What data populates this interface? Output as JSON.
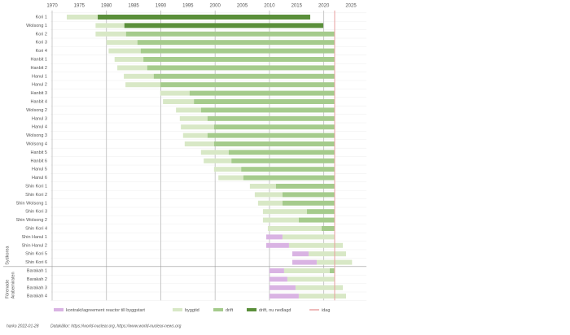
{
  "chart_data": {
    "type": "timeline",
    "xlim": [
      1970,
      2025
    ],
    "xticks": [
      1970,
      1975,
      1980,
      1985,
      1990,
      1995,
      2000,
      2005,
      2010,
      2015,
      2020,
      2025
    ],
    "grid": true,
    "series": [
      {
        "name": "kontrakt/agreement reactor till byggstart",
        "color": "#d9b3e3"
      },
      {
        "name": "byggtid",
        "color": "#d8e8c6"
      },
      {
        "name": "drift",
        "color": "#a5cb8c"
      },
      {
        "name": "drift, nu nedlagd",
        "color": "#5a8f3a"
      }
    ],
    "today": {
      "name": "idag",
      "value": 2022,
      "color": "#e8a2a2"
    },
    "groups": [
      {
        "label": [
          "Sydkorea"
        ],
        "rows": [
          {
            "name": "Kori 1",
            "phases": [
              null,
              [
                1972.7,
                1978.4
              ],
              null,
              [
                1978.4,
                2017.5
              ]
            ]
          },
          {
            "name": "Wolsong 1",
            "phases": [
              null,
              [
                1978,
                1983.3
              ],
              null,
              [
                1983.3,
                2019.9
              ]
            ]
          },
          {
            "name": "Kori 2",
            "phases": [
              null,
              [
                1978,
                1983.6
              ],
              [
                1983.6,
                2022
              ],
              null
            ]
          },
          {
            "name": "Kori 3",
            "phases": [
              null,
              [
                1980,
                1985.7
              ],
              [
                1985.7,
                2022
              ],
              null
            ]
          },
          {
            "name": "Kori 4",
            "phases": [
              null,
              [
                1980.4,
                1986.3
              ],
              [
                1986.3,
                2022
              ],
              null
            ]
          },
          {
            "name": "Hanbit 1",
            "phases": [
              null,
              [
                1981.5,
                1986.8
              ],
              [
                1986.8,
                2022
              ],
              null
            ]
          },
          {
            "name": "Hanbit 2",
            "phases": [
              null,
              [
                1982,
                1987.5
              ],
              [
                1987.5,
                2022
              ],
              null
            ]
          },
          {
            "name": "Hanul 1",
            "phases": [
              null,
              [
                1983.2,
                1988.7
              ],
              [
                1988.7,
                2022
              ],
              null
            ]
          },
          {
            "name": "Hanul 2",
            "phases": [
              null,
              [
                1983.5,
                1989.9
              ],
              [
                1989.9,
                2022
              ],
              null
            ]
          },
          {
            "name": "Hanbit 3",
            "phases": [
              null,
              [
                1989.9,
                1995.3
              ],
              [
                1995.3,
                2022
              ],
              null
            ]
          },
          {
            "name": "Hanbit 4",
            "phases": [
              null,
              [
                1990.4,
                1996.1
              ],
              [
                1996.1,
                2022
              ],
              null
            ]
          },
          {
            "name": "Wolsong 2",
            "phases": [
              null,
              [
                1992.8,
                1997.4
              ],
              [
                1997.4,
                2022
              ],
              null
            ]
          },
          {
            "name": "Hanul 3",
            "phases": [
              null,
              [
                1993.5,
                1998.6
              ],
              [
                1998.6,
                2022
              ],
              null
            ]
          },
          {
            "name": "Hanul 4",
            "phases": [
              null,
              [
                1993.7,
                1999.8
              ],
              [
                1999.8,
                2022
              ],
              null
            ]
          },
          {
            "name": "Wolsong 3",
            "phases": [
              null,
              [
                1994.1,
                1998.6
              ],
              [
                1998.6,
                2022
              ],
              null
            ]
          },
          {
            "name": "Wolsong 4",
            "phases": [
              null,
              [
                1994.4,
                1999.8
              ],
              [
                1999.8,
                2022
              ],
              null
            ]
          },
          {
            "name": "Hanbit 5",
            "phases": [
              null,
              [
                1997.4,
                2002.5
              ],
              [
                2002.5,
                2022
              ],
              null
            ]
          },
          {
            "name": "Hanbit 6",
            "phases": [
              null,
              [
                1997.9,
                2003
              ],
              [
                2003,
                2022
              ],
              null
            ]
          },
          {
            "name": "Hanul 5",
            "phases": [
              null,
              [
                1999.8,
                2004.8
              ],
              [
                2004.8,
                2022
              ],
              null
            ]
          },
          {
            "name": "Hanul 6",
            "phases": [
              null,
              [
                2000.6,
                2005.2
              ],
              [
                2005.2,
                2022
              ],
              null
            ]
          },
          {
            "name": "Shin Kori 1",
            "phases": [
              null,
              [
                2006.4,
                2011.2
              ],
              [
                2011.2,
                2022
              ],
              null
            ]
          },
          {
            "name": "Shin Kori 2",
            "phases": [
              null,
              [
                2007.3,
                2012.4
              ],
              [
                2012.4,
                2022
              ],
              null
            ]
          },
          {
            "name": "Shin Wolsong 1",
            "phases": [
              null,
              [
                2007.9,
                2012.4
              ],
              [
                2012.4,
                2022
              ],
              null
            ]
          },
          {
            "name": "Shin Kori 3",
            "phases": [
              null,
              [
                2008.8,
                2016.9
              ],
              [
                2016.9,
                2022
              ],
              null
            ]
          },
          {
            "name": "Shin Wolsong 2",
            "phases": [
              null,
              [
                2008.8,
                2015.4
              ],
              [
                2015.4,
                2022
              ],
              null
            ]
          },
          {
            "name": "Shin Kori 4",
            "phases": [
              null,
              [
                2009.7,
                2019.6
              ],
              [
                2019.6,
                2022
              ],
              null
            ]
          },
          {
            "name": "Shin Hanul 1",
            "phases": [
              [
                2009.4,
                2012.4
              ],
              [
                2012.4,
                2022
              ],
              null,
              null
            ]
          },
          {
            "name": "Shin Hanul 2",
            "phases": [
              [
                2009.4,
                2013.6
              ],
              [
                2013.6,
                2023.5
              ],
              null,
              null
            ]
          },
          {
            "name": "Shin Kori 5",
            "phases": [
              [
                2014.2,
                2017.2
              ],
              [
                2017.2,
                2024.1
              ],
              null,
              null
            ]
          },
          {
            "name": "Shin Kori 6",
            "phases": [
              [
                2014.2,
                2018.7
              ],
              [
                2018.7,
                2025.2
              ],
              null,
              null
            ]
          }
        ]
      },
      {
        "label": [
          "Förenade",
          "Arabemiraten"
        ],
        "rows": [
          {
            "name": "Barakah 1",
            "phases": [
              [
                2010,
                2012.7
              ],
              [
                2012.7,
                2021.1
              ],
              [
                2021.1,
                2022
              ],
              null
            ]
          },
          {
            "name": "Barakah 2",
            "phases": [
              [
                2010,
                2013.3
              ],
              [
                2013.3,
                2022
              ],
              null,
              null
            ]
          },
          {
            "name": "Barakah 3",
            "phases": [
              [
                2010,
                2014.8
              ],
              [
                2014.8,
                2023.5
              ],
              null,
              null
            ]
          },
          {
            "name": "Barakah 4",
            "phases": [
              [
                2010,
                2015.4
              ],
              [
                2015.4,
                2024.1
              ],
              null,
              null
            ]
          }
        ]
      }
    ],
    "footer": {
      "author": "harko 2022-01-28",
      "source": "Datakällor: https://world-nuclear.org,  https://www.world-nuclear-news.org"
    }
  }
}
